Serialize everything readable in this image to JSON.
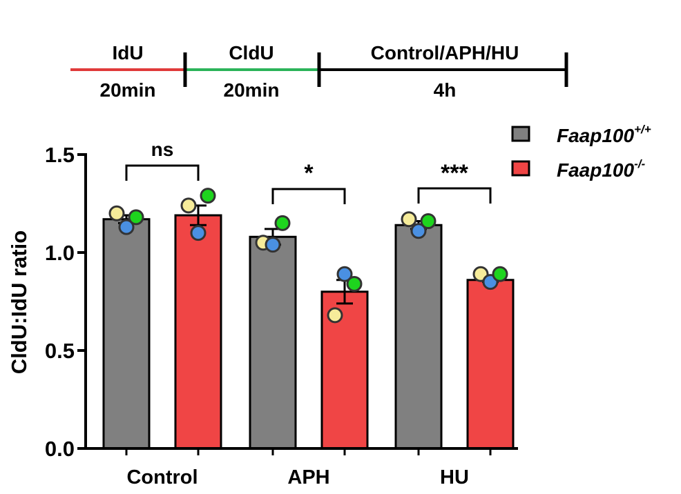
{
  "timeline": {
    "segments": [
      {
        "label": "IdU",
        "duration": "20min",
        "color": "#e03a3a"
      },
      {
        "label": "CldU",
        "duration": "20min",
        "color": "#2bb35a"
      },
      {
        "label": "Control/APH/HU",
        "duration": "4h",
        "color": "#000000"
      }
    ]
  },
  "chart_data": {
    "type": "bar",
    "ylabel": "CldU:IdU ratio",
    "xlabel": "",
    "ylim": [
      0,
      1.5
    ],
    "yticks": [
      0.0,
      0.5,
      1.0,
      1.5
    ],
    "ytick_labels": [
      "0.0",
      "0.5",
      "1.0",
      "1.5"
    ],
    "categories": [
      "Control",
      "APH",
      "HU"
    ],
    "series": [
      {
        "name_main": "Faap100",
        "name_sup": "+/+",
        "color": "#808080",
        "values": [
          1.17,
          1.08,
          1.14
        ],
        "sem": [
          0.02,
          0.04,
          0.02
        ],
        "points": [
          [
            1.2,
            1.13,
            1.18
          ],
          [
            1.05,
            1.04,
            1.15
          ],
          [
            1.17,
            1.11,
            1.16
          ]
        ]
      },
      {
        "name_main": "Faap100",
        "name_sup": "-/-",
        "color": "#f04545",
        "values": [
          1.19,
          0.8,
          0.86
        ],
        "sem": [
          0.05,
          0.06,
          0.01
        ],
        "points": [
          [
            1.24,
            1.1,
            1.29
          ],
          [
            0.68,
            0.89,
            0.84
          ],
          [
            0.89,
            0.85,
            0.89
          ]
        ]
      }
    ],
    "point_colors": [
      "#f6ec9a",
      "#4a90e2",
      "#1ed41e"
    ],
    "significance": [
      "ns",
      "*",
      "***"
    ],
    "legend_position": "top-right"
  }
}
